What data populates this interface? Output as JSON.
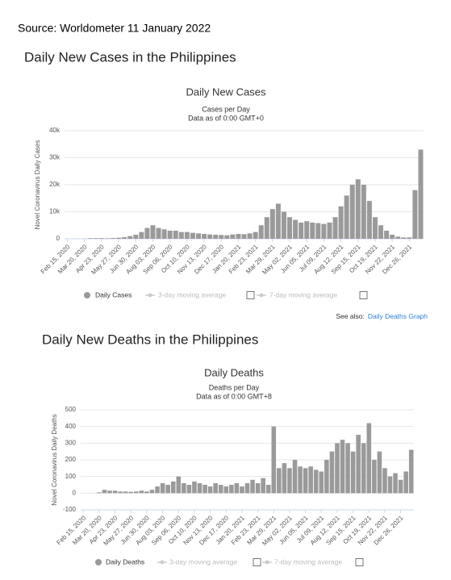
{
  "header": {
    "source": "Source: Worldometer  11 January 2022"
  },
  "chart_data": [
    {
      "type": "bar",
      "section_title": "Daily New Cases in the Philippines",
      "title": "Daily New Cases",
      "subtitle": [
        "Cases per Day",
        "Data as of 0:00 GMT+0"
      ],
      "y_label": "Novel Coronavirus Daily Cases",
      "categories": [
        "Feb 15, 2020",
        null,
        null,
        "Mar 20, 2020",
        null,
        null,
        "Apr 23, 2020",
        null,
        null,
        "May 27, 2020",
        null,
        null,
        "Jun 30, 2020",
        null,
        null,
        "Aug 03, 2020",
        null,
        null,
        "Sep 06, 2020",
        null,
        null,
        "Oct 10, 2020",
        null,
        null,
        "Nov 13, 2020",
        null,
        null,
        "Dec 17, 2020",
        null,
        null,
        "Jan 20, 2021",
        null,
        null,
        "Feb 23, 2021",
        null,
        null,
        "Mar 29, 2021",
        null,
        null,
        "May 02, 2021",
        null,
        null,
        "Jun 05, 2021",
        null,
        null,
        "Jul 09, 2021",
        null,
        null,
        "Aug 12, 2021",
        null,
        null,
        "Sep 15, 2021",
        null,
        null,
        "Oct 19, 2021",
        null,
        null,
        "Nov 22, 2021",
        null,
        null,
        "Dec 26, 2021",
        null,
        null
      ],
      "series": [
        {
          "name": "Daily Cases",
          "color": "#9a9a9a",
          "values": [
            0,
            0,
            0,
            50,
            200,
            250,
            250,
            200,
            300,
            400,
            600,
            1000,
            1500,
            2500,
            4000,
            5000,
            4000,
            3500,
            3000,
            3000,
            2500,
            2500,
            2200,
            2000,
            1800,
            1600,
            1500,
            1400,
            1300,
            1600,
            1800,
            1700,
            2000,
            2500,
            5000,
            8000,
            11000,
            13000,
            10000,
            8000,
            7000,
            6000,
            6500,
            6000,
            5800,
            5500,
            6000,
            8000,
            12000,
            16000,
            20000,
            22000,
            20000,
            14000,
            8000,
            5000,
            3000,
            1500,
            800,
            500,
            500,
            18000,
            33000
          ]
        }
      ],
      "inactive_series": [
        "3-day moving average",
        "7-day moving average"
      ],
      "see_also": "See also:",
      "link": "Daily Deaths Graph",
      "ylim": [
        0,
        40000
      ],
      "yticks": [
        0,
        {
          "value": 10000,
          "label": "10k"
        },
        {
          "value": 20000,
          "label": "20k"
        },
        {
          "value": 30000,
          "label": "30k"
        },
        {
          "value": 40000,
          "label": "40k"
        }
      ],
      "grid": true
    },
    {
      "type": "bar",
      "section_title": "Daily New Deaths in the Philippines",
      "title": "Daily Deaths",
      "subtitle": [
        "Deaths per Day",
        "Data as of 0:00 GMT+8"
      ],
      "y_label": "Novel Coronavirus Daily Deaths",
      "categories": [
        "Feb 15, 2020",
        null,
        null,
        "Mar 20, 2020",
        null,
        null,
        "Apr 23, 2020",
        null,
        null,
        "May 27, 2020",
        null,
        null,
        "Jun 30, 2020",
        null,
        null,
        "Aug 03, 2020",
        null,
        null,
        "Sep 06, 2020",
        null,
        null,
        "Oct 10, 2020",
        null,
        null,
        "Nov 13, 2020",
        null,
        null,
        "Dec 17, 2020",
        null,
        null,
        "Jan 20, 2021",
        null,
        null,
        "Feb 23, 2021",
        null,
        null,
        "Mar 29, 2021",
        null,
        null,
        "May 02, 2021",
        null,
        null,
        "Jun 05, 2021",
        null,
        null,
        "Jul 09, 2021",
        null,
        null,
        "Aug 12, 2021",
        null,
        null,
        "Sep 15, 2021",
        null,
        null,
        "Oct 19, 2021",
        null,
        null,
        "Nov 22, 2021",
        null,
        null,
        "Dec 26, 2021",
        null,
        null
      ],
      "series": [
        {
          "name": "Daily Deaths",
          "color": "#9a9a9a",
          "values": [
            0,
            0,
            0,
            5,
            20,
            15,
            15,
            10,
            10,
            8,
            10,
            15,
            10,
            20,
            40,
            60,
            50,
            70,
            100,
            60,
            50,
            70,
            60,
            50,
            40,
            60,
            50,
            40,
            50,
            60,
            40,
            60,
            80,
            60,
            90,
            50,
            400,
            150,
            180,
            150,
            200,
            160,
            150,
            160,
            140,
            130,
            200,
            250,
            300,
            320,
            300,
            250,
            350,
            300,
            420,
            200,
            250,
            150,
            100,
            120,
            80,
            130,
            260
          ]
        }
      ],
      "inactive_series": [
        "3-day moving average",
        "7-day moving average"
      ],
      "ylim": [
        -100,
        500
      ],
      "yticks": [
        -100,
        0,
        100,
        200,
        300,
        400,
        500
      ],
      "grid": true
    }
  ]
}
